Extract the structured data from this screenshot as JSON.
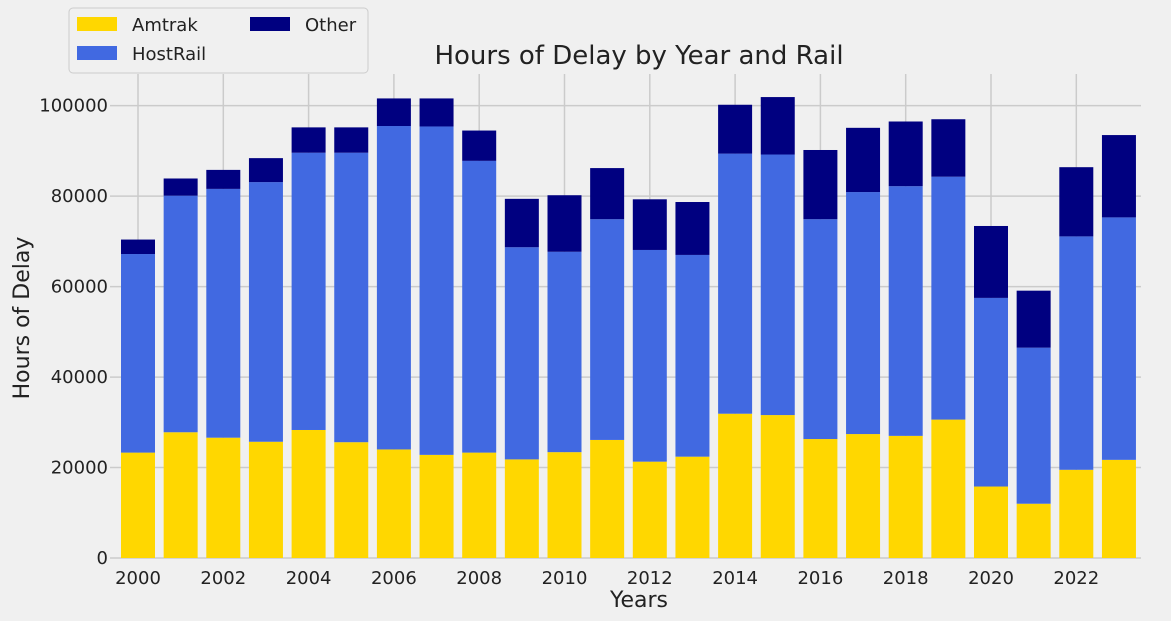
{
  "chart_data": {
    "type": "bar",
    "stacked": true,
    "title": "Hours of Delay by Year and Rail",
    "xlabel": "Years",
    "ylabel": "Hours of Delay",
    "categories": [
      2000,
      2001,
      2002,
      2003,
      2004,
      2005,
      2006,
      2007,
      2008,
      2009,
      2010,
      2011,
      2012,
      2013,
      2014,
      2015,
      2016,
      2017,
      2018,
      2019,
      2020,
      2021,
      2022,
      2023
    ],
    "x_tick_labels": [
      "2000",
      "2002",
      "2004",
      "2006",
      "2008",
      "2010",
      "2012",
      "2014",
      "2016",
      "2018",
      "2020",
      "2022"
    ],
    "y_tick_labels": [
      "0",
      "20000",
      "40000",
      "60000",
      "80000",
      "100000"
    ],
    "ylim": [
      0,
      107000
    ],
    "grid": true,
    "legend_placement": "top-left, above plot",
    "series": [
      {
        "name": "Amtrak",
        "color": "#FFD700",
        "values": [
          23300,
          27800,
          26600,
          25700,
          28300,
          25600,
          24000,
          22800,
          23300,
          21800,
          23400,
          26100,
          21300,
          22400,
          31900,
          31600,
          26300,
          27400,
          27000,
          30600,
          15800,
          12000,
          19500,
          21700
        ]
      },
      {
        "name": "HostRail",
        "color": "#4169E1",
        "values": [
          43900,
          52300,
          55000,
          57400,
          61300,
          64000,
          71500,
          72600,
          64500,
          46900,
          44300,
          48800,
          46800,
          44600,
          57500,
          57600,
          48600,
          53500,
          55200,
          53700,
          41700,
          34500,
          51600,
          53600
        ]
      },
      {
        "name": "Other",
        "color": "#000080",
        "values": [
          3200,
          3800,
          4200,
          5300,
          5600,
          5600,
          6100,
          6200,
          6700,
          10700,
          12500,
          11300,
          11200,
          11700,
          10800,
          12700,
          15300,
          14200,
          14300,
          12700,
          15900,
          12600,
          15300,
          18200
        ]
      }
    ]
  }
}
